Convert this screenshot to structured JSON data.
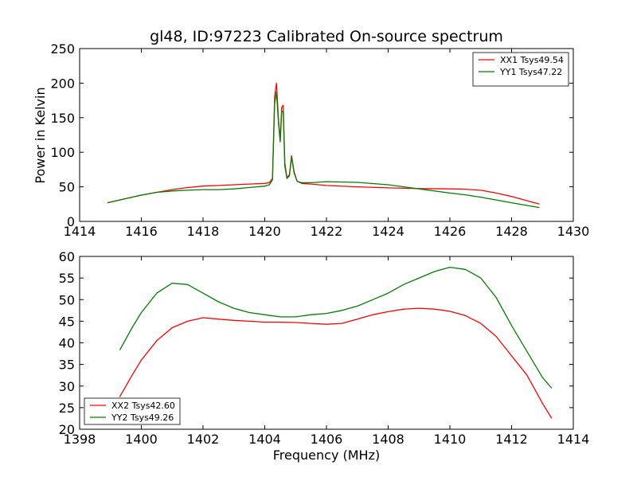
{
  "chart_data": [
    {
      "type": "line",
      "title": "gl48, ID:97223 Calibrated On-source spectrum",
      "xlabel": "",
      "ylabel": "Power in Kelvin",
      "xlim": [
        1414,
        1430
      ],
      "ylim": [
        0,
        250
      ],
      "xticks": [
        "1414",
        "1416",
        "1418",
        "1420",
        "1422",
        "1424",
        "1426",
        "1428",
        "1430"
      ],
      "yticks": [
        "0",
        "50",
        "100",
        "150",
        "200",
        "250"
      ],
      "grid": false,
      "legend_position": "top-right",
      "series": [
        {
          "name": "XX1 Tsys49.54",
          "color": "#ff0000",
          "x": [
            1414.9,
            1415.5,
            1416,
            1416.5,
            1417,
            1417.5,
            1418,
            1418.5,
            1419,
            1419.5,
            1420,
            1420.15,
            1420.25,
            1420.32,
            1420.38,
            1420.45,
            1420.5,
            1420.55,
            1420.6,
            1420.65,
            1420.72,
            1420.8,
            1420.87,
            1420.95,
            1421.05,
            1421.2,
            1421.5,
            1422,
            1423,
            1424,
            1425,
            1426,
            1426.5,
            1427,
            1427.5,
            1428,
            1428.5,
            1428.9
          ],
          "values": [
            27,
            33,
            38,
            42,
            46,
            49,
            51,
            52,
            53,
            54,
            55,
            56,
            62,
            180,
            200,
            145,
            118,
            165,
            168,
            85,
            63,
            68,
            95,
            72,
            58,
            55,
            54,
            52,
            50,
            48.5,
            47.5,
            47,
            46.5,
            45,
            41,
            36,
            30,
            25
          ]
        },
        {
          "name": "YY1 Tsys47.22",
          "color": "#008000",
          "x": [
            1414.9,
            1415.5,
            1416,
            1416.5,
            1417,
            1417.5,
            1418,
            1418.5,
            1419,
            1419.5,
            1420,
            1420.15,
            1420.25,
            1420.32,
            1420.38,
            1420.45,
            1420.5,
            1420.55,
            1420.6,
            1420.65,
            1420.72,
            1420.8,
            1420.87,
            1420.95,
            1421.05,
            1421.2,
            1421.5,
            1422,
            1423,
            1424,
            1425,
            1426,
            1426.5,
            1427,
            1427.5,
            1428,
            1428.5,
            1428.9
          ],
          "values": [
            27,
            33,
            38,
            42,
            44,
            45,
            46,
            46,
            47,
            49,
            51,
            53,
            60,
            170,
            187,
            140,
            115,
            158,
            160,
            80,
            62,
            66,
            93,
            70,
            58,
            56,
            56,
            57.5,
            56.5,
            53,
            47,
            41,
            38.5,
            35,
            31,
            27,
            23,
            20
          ]
        }
      ]
    },
    {
      "type": "line",
      "title": "",
      "xlabel": "Frequency (MHz)",
      "ylabel": "",
      "xlim": [
        1398,
        1414
      ],
      "ylim": [
        20,
        60
      ],
      "xticks": [
        "1398",
        "1400",
        "1402",
        "1404",
        "1406",
        "1408",
        "1410",
        "1412",
        "1414"
      ],
      "yticks": [
        "20",
        "25",
        "30",
        "35",
        "40",
        "45",
        "50",
        "55",
        "60"
      ],
      "grid": false,
      "legend_position": "bottom-left",
      "series": [
        {
          "name": "XX2 Tsys42.60",
          "color": "#ff0000",
          "x": [
            1399.3,
            1399.7,
            1400,
            1400.5,
            1401,
            1401.5,
            1402,
            1402.5,
            1403,
            1403.5,
            1404,
            1404.5,
            1405,
            1405.5,
            1406,
            1406.5,
            1407,
            1407.5,
            1408,
            1408.5,
            1409,
            1409.5,
            1410,
            1410.5,
            1411,
            1411.5,
            1412,
            1412.5,
            1413,
            1413.3
          ],
          "values": [
            27.5,
            32.5,
            36,
            40.5,
            43.5,
            45,
            45.8,
            45.5,
            45.2,
            45,
            44.8,
            44.8,
            44.7,
            44.5,
            44.3,
            44.5,
            45.5,
            46.5,
            47.2,
            47.8,
            48,
            47.8,
            47.3,
            46.3,
            44.5,
            41.5,
            37,
            32.5,
            26,
            22.5
          ]
        },
        {
          "name": "YY2 Tsys49.26",
          "color": "#008000",
          "x": [
            1399.3,
            1399.7,
            1400,
            1400.5,
            1401,
            1401.5,
            1402,
            1402.5,
            1403,
            1403.5,
            1404,
            1404.5,
            1405,
            1405.5,
            1406,
            1406.5,
            1407,
            1407.5,
            1408,
            1408.5,
            1409,
            1409.5,
            1410,
            1410.5,
            1411,
            1411.5,
            1412,
            1412.5,
            1413,
            1413.3
          ],
          "values": [
            38.3,
            43.5,
            47,
            51.5,
            53.8,
            53.5,
            51.5,
            49.5,
            48,
            47,
            46.5,
            46,
            46,
            46.5,
            46.8,
            47.5,
            48.5,
            50,
            51.5,
            53.5,
            55,
            56.5,
            57.5,
            57,
            55,
            50.5,
            44,
            38,
            32,
            29.5
          ]
        }
      ]
    }
  ]
}
